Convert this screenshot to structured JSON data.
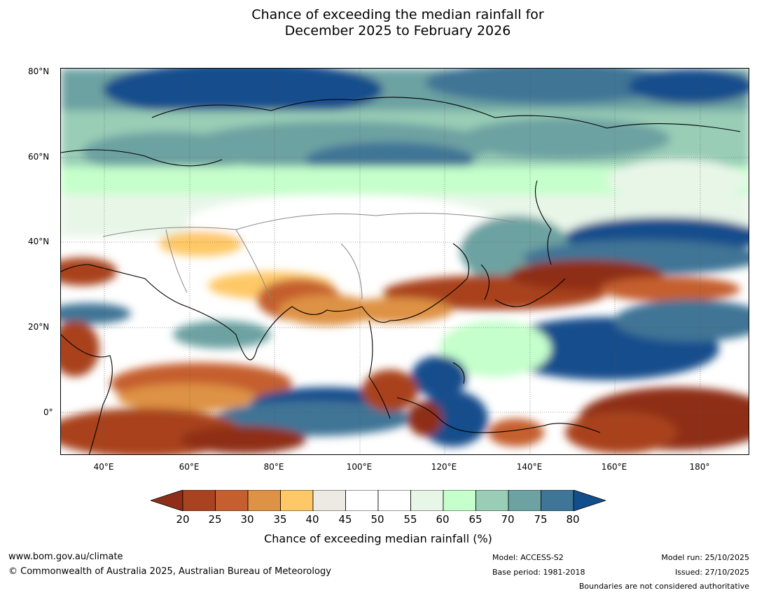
{
  "title": {
    "line1": "Chance of exceeding the median rainfall for",
    "line2": "December 2025 to February 2026"
  },
  "map": {
    "lat_labels": [
      "80°N",
      "60°N",
      "40°N",
      "20°N",
      "0°"
    ],
    "lon_labels": [
      "40°E",
      "60°E",
      "80°E",
      "100°E",
      "120°E",
      "140°E",
      "160°E",
      "180°"
    ]
  },
  "colorbar": {
    "ticks": [
      "20",
      "25",
      "30",
      "35",
      "40",
      "45",
      "50",
      "55",
      "60",
      "65",
      "70",
      "75",
      "80"
    ],
    "colors": [
      "#8f2e18",
      "#a9431f",
      "#c55f2f",
      "#de9245",
      "#fec866",
      "#edeae4",
      "#ffffff",
      "#ffffff",
      "#e8f6e8",
      "#c5ffcb",
      "#99cdb6",
      "#6da2a2",
      "#3f7596",
      "#124e8c"
    ],
    "label": "Chance of exceeding median rainfall (%)"
  },
  "footer": {
    "url": "www.bom.gov.au/climate",
    "copyright": "© Commonwealth of Australia 2025, Australian Bureau of Meteorology",
    "model": "Model: ACCESS-S2",
    "base_period": "Base period: 1981-2018",
    "model_run": "Model run: 25/10/2025",
    "issued": "Issued: 27/10/2025",
    "disclaimer": "Boundaries are not considered authoritative"
  }
}
